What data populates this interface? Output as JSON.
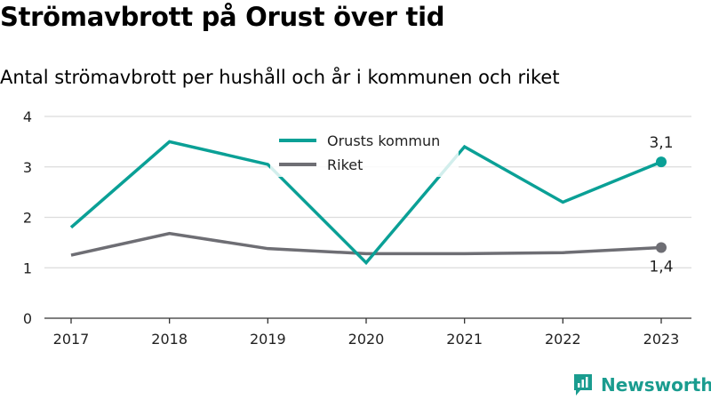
{
  "title": "Strömavbrott på Orust över tid",
  "subtitle": "Antal strömavbrott per hushåll och år i kommunen och riket",
  "brand": {
    "name": "Newsworthy",
    "color": "#1a9c8f",
    "icon": "newsworthy-logo-icon"
  },
  "chart_data": {
    "type": "line",
    "categories": [
      "2017",
      "2018",
      "2019",
      "2020",
      "2021",
      "2022",
      "2023"
    ],
    "ylim": [
      0,
      4
    ],
    "yticks": [
      "0",
      "1",
      "2",
      "3",
      "4"
    ],
    "grid": true,
    "legend_position": "top-center",
    "series": [
      {
        "name": "Orusts kommun",
        "color": "#0aa096",
        "values": [
          1.8,
          3.5,
          3.05,
          1.1,
          3.4,
          2.3,
          3.1
        ],
        "end_label": "3,1"
      },
      {
        "name": "Riket",
        "color": "#6e6e74",
        "values": [
          1.25,
          1.68,
          1.38,
          1.28,
          1.28,
          1.3,
          1.4
        ],
        "end_label": "1,4"
      }
    ]
  }
}
